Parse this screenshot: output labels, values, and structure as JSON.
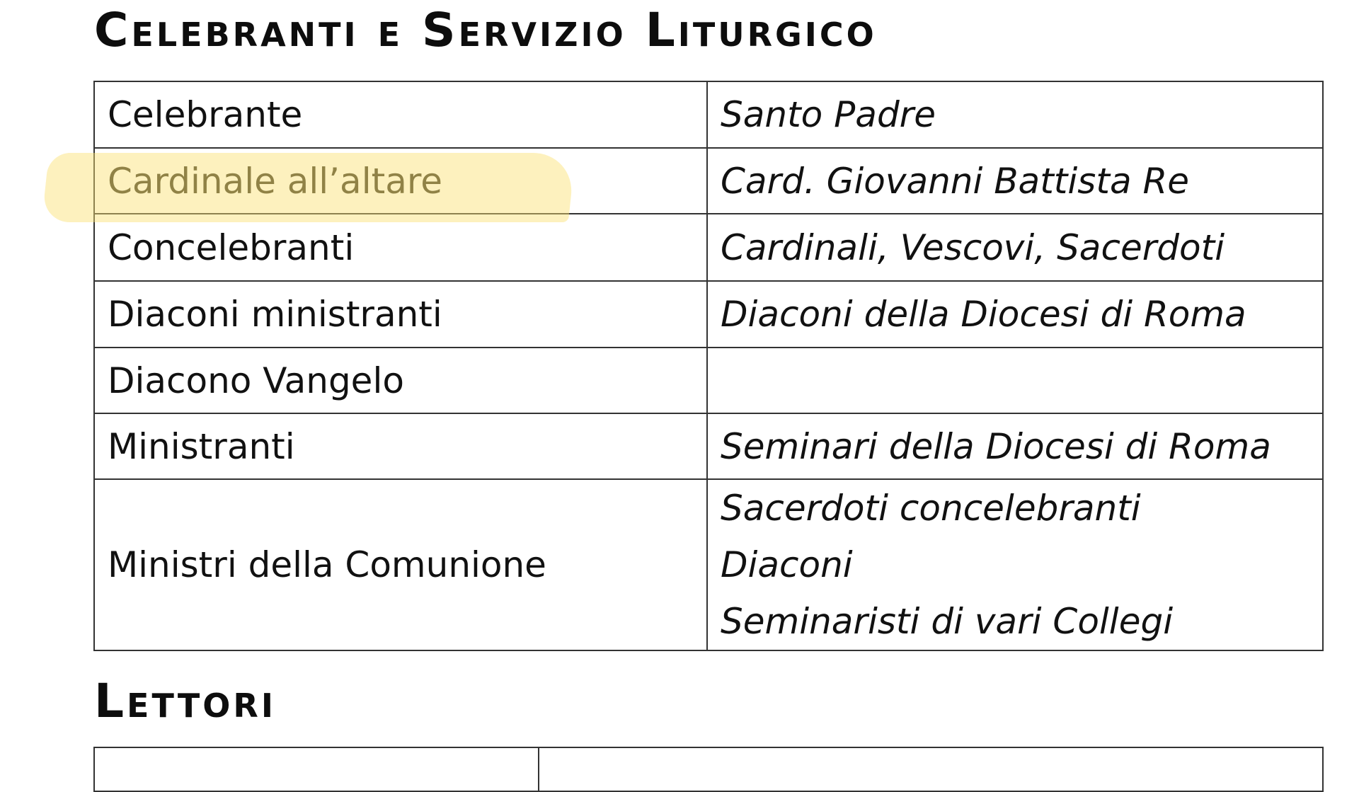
{
  "sections": [
    {
      "title": "Celebranti e Servizio Liturgico",
      "rows": [
        {
          "role": "Celebrante",
          "names": [
            "Santo Padre"
          ]
        },
        {
          "role": "Cardinale all’altare",
          "names": [
            "Card. Giovanni Battista Re"
          ],
          "highlighted": true
        },
        {
          "role": "Concelebranti",
          "names": [
            "Cardinali, Vescovi, Sacerdoti"
          ]
        },
        {
          "role": "Diaconi ministranti",
          "names": [
            "Diaconi della Diocesi di Roma"
          ]
        },
        {
          "role": "Diacono Vangelo",
          "names": [
            ""
          ]
        },
        {
          "role": "Ministranti",
          "names": [
            "Seminari della Diocesi di Roma"
          ]
        },
        {
          "role": "Ministri della Comunione",
          "names": [
            "Sacerdoti concelebranti",
            "Diaconi",
            "Seminaristi di vari Collegi"
          ]
        }
      ]
    },
    {
      "title": "Lettori"
    }
  ],
  "highlight_color": "#FAE16E"
}
